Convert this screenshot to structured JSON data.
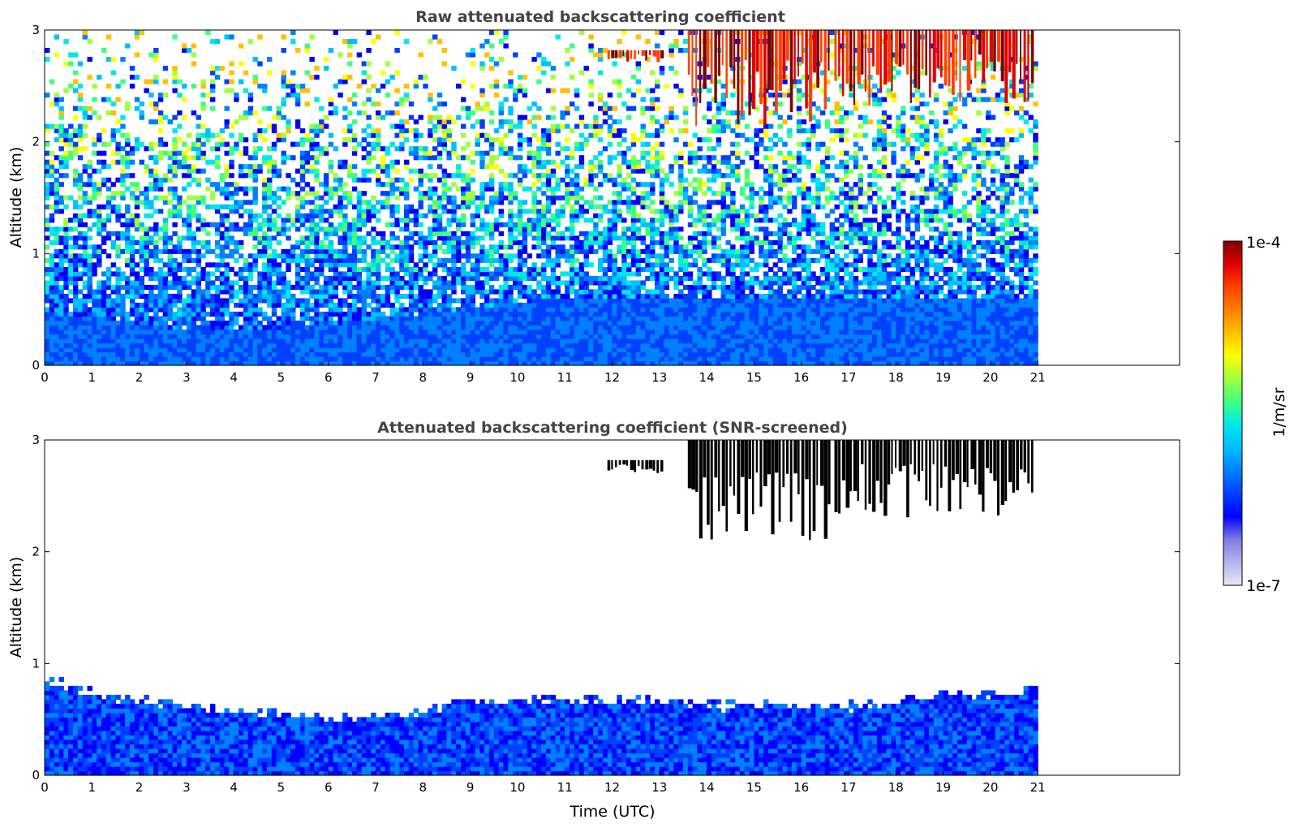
{
  "chart_data": [
    {
      "type": "heatmap",
      "title": "Raw attenuated backscattering coefficient",
      "xlabel": "",
      "ylabel": "Altitude (km)",
      "xlim": [
        0,
        24
      ],
      "ylim": [
        0,
        3
      ],
      "xticks": [
        0,
        1,
        2,
        3,
        4,
        5,
        6,
        7,
        8,
        9,
        10,
        11,
        12,
        13,
        14,
        15,
        16,
        17,
        18,
        19,
        20,
        21
      ],
      "yticks": [
        0,
        1,
        2,
        3
      ],
      "data_extent_x": [
        0,
        21
      ],
      "description_fields": {
        "cloud_layers": [
          {
            "x": [
              11.9,
              13.1
            ],
            "y": [
              2.7,
              2.82
            ]
          },
          {
            "x": [
              13.6,
              16.6
            ],
            "y": [
              2.1,
              3.0
            ]
          },
          {
            "x": [
              16.7,
              20.9
            ],
            "y": [
              2.3,
              3.0
            ]
          }
        ],
        "boundary_layer_top_km": [
          0.45,
          0.4,
          0.35,
          0.3,
          0.28,
          0.3,
          0.35,
          0.4,
          0.45,
          0.5,
          0.55,
          0.6,
          0.6,
          0.6,
          0.6,
          0.6,
          0.6,
          0.6,
          0.6,
          0.6,
          0.6,
          0.6
        ]
      }
    },
    {
      "type": "heatmap",
      "title": "Attenuated backscattering coefficient (SNR-screened)",
      "xlabel": "Time (UTC)",
      "ylabel": "Altitude (km)",
      "xlim": [
        0,
        24
      ],
      "ylim": [
        0,
        3
      ],
      "xticks": [
        0,
        1,
        2,
        3,
        4,
        5,
        6,
        7,
        8,
        9,
        10,
        11,
        12,
        13,
        14,
        15,
        16,
        17,
        18,
        19,
        20,
        21
      ],
      "yticks": [
        0,
        1,
        2,
        3
      ],
      "data_extent_x": [
        0,
        21
      ],
      "description_fields": {
        "aerosol_top_km": [
          0.85,
          0.7,
          0.65,
          0.6,
          0.55,
          0.55,
          0.5,
          0.5,
          0.55,
          0.65,
          0.65,
          0.65,
          0.65,
          0.65,
          0.6,
          0.6,
          0.6,
          0.6,
          0.65,
          0.7,
          0.7,
          0.75
        ]
      }
    }
  ],
  "colorbar": {
    "label": "1/m/sr",
    "max_label": "1e-4",
    "min_label": "1e-7",
    "colormap": [
      "#e8e8f8",
      "#b4b4ec",
      "#7d7ddf",
      "#0000ff",
      "#0040ff",
      "#0080ff",
      "#00c0ff",
      "#00e8e8",
      "#40ff80",
      "#a0ff40",
      "#ffff00",
      "#ffc000",
      "#ff8000",
      "#ff4000",
      "#e00000",
      "#800000"
    ]
  }
}
